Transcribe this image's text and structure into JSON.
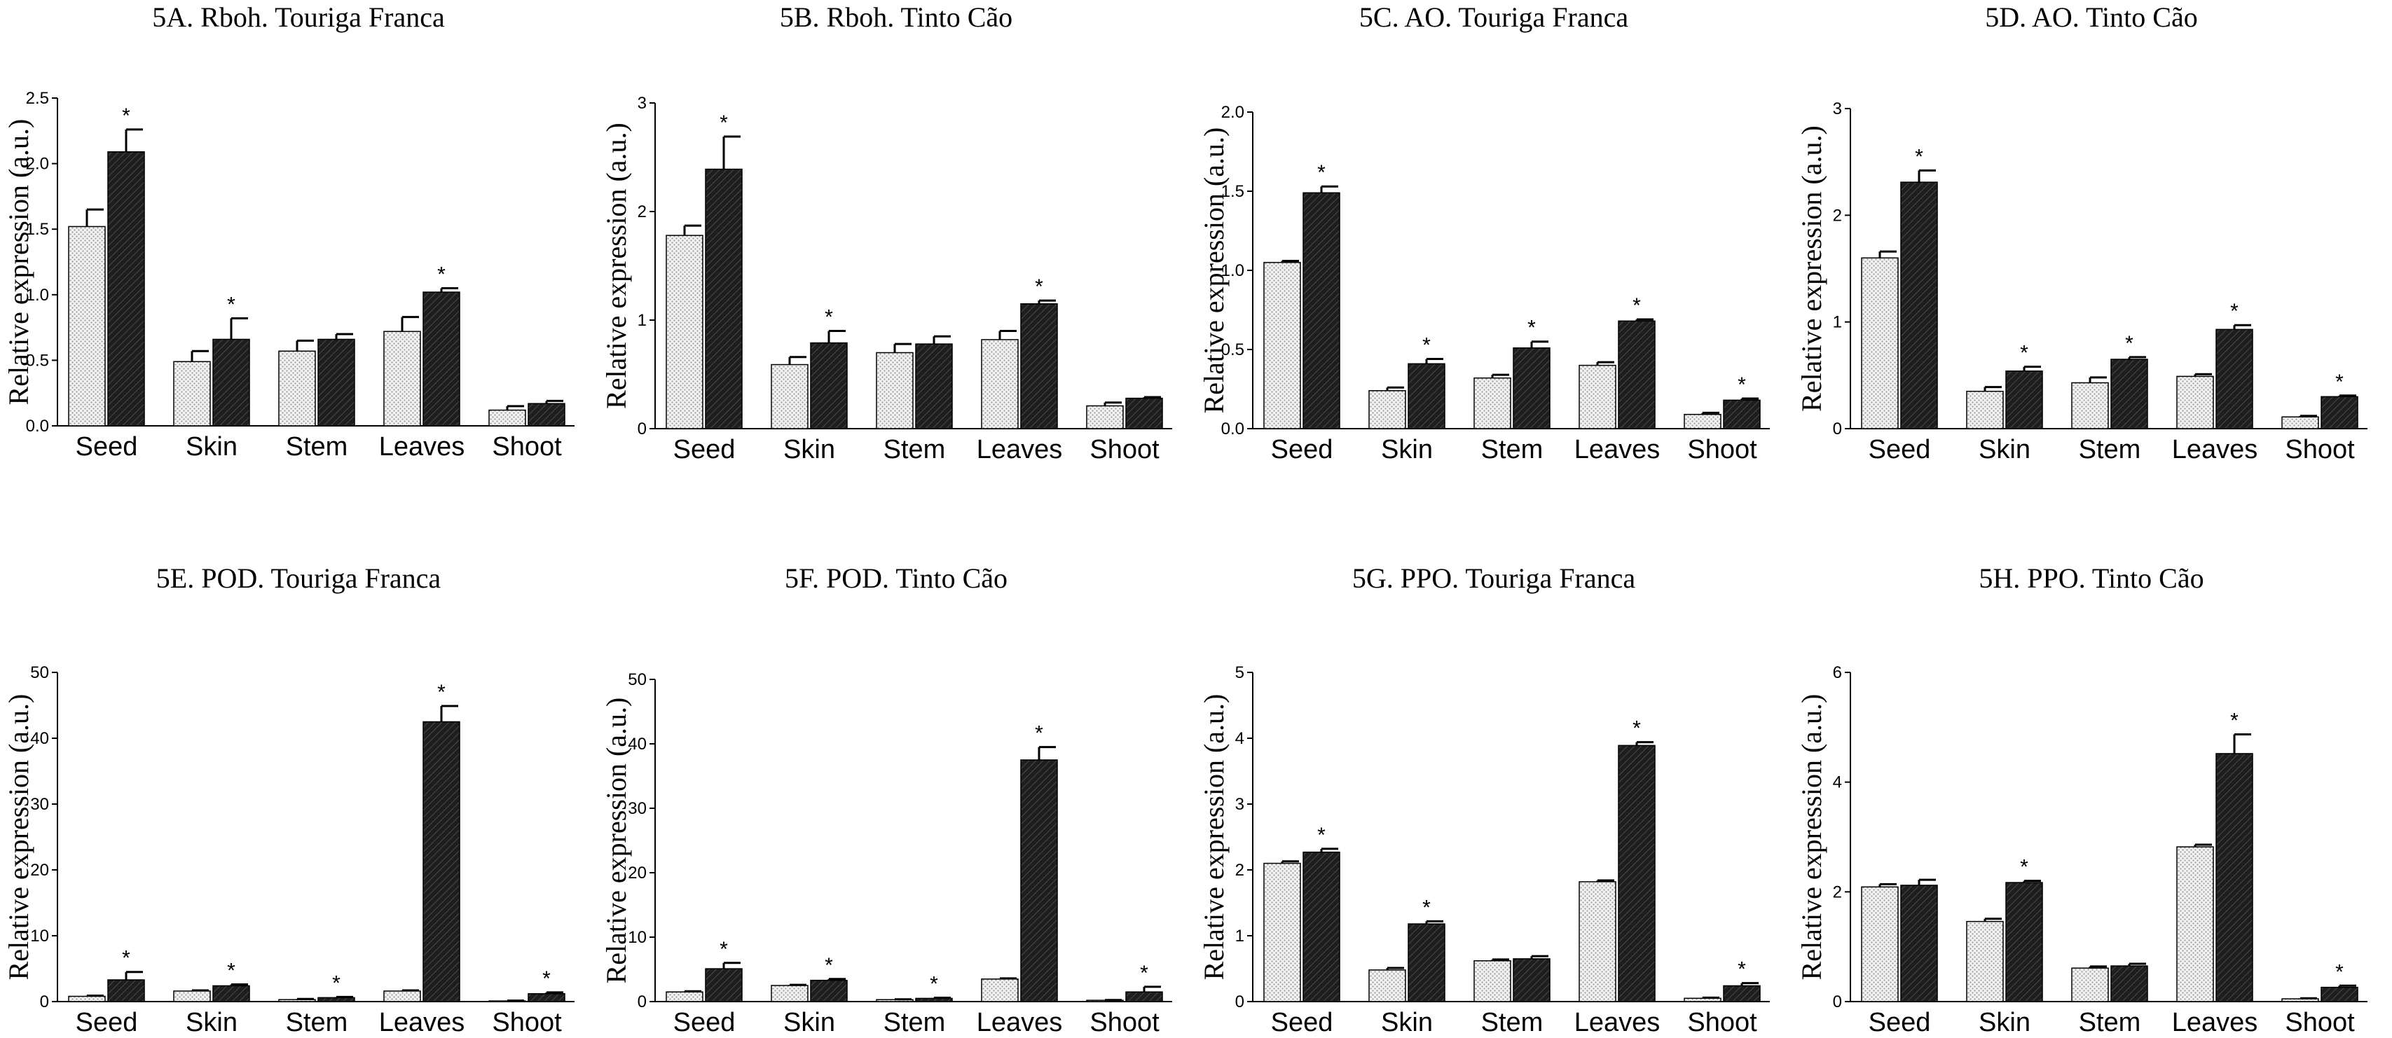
{
  "legend": [
    {
      "name": "",
      "fill": "dotted-light",
      "color": "#e6e6e6"
    },
    {
      "name": "",
      "fill": "hatched-dark",
      "color": "#222222"
    }
  ],
  "chart_data": [
    {
      "type": "bar",
      "title": "5A. Rboh. Touriga Franca",
      "ylabel": "Relative expression (a.u.)",
      "xlabel": "",
      "categories": [
        "Seed",
        "Skin",
        "Stem",
        "Leaves",
        "Shoot"
      ],
      "yticks": [
        "0.0",
        "0.5",
        "1.0",
        "1.5",
        "2.0",
        "2.5"
      ],
      "ylim": [
        0,
        2.5
      ],
      "series": [
        {
          "values": [
            1.52,
            0.49,
            0.57,
            0.72,
            0.12
          ],
          "errors": [
            0.13,
            0.08,
            0.08,
            0.11,
            0.03
          ]
        },
        {
          "values": [
            2.09,
            0.66,
            0.66,
            1.02,
            0.17
          ],
          "errors": [
            0.17,
            0.16,
            0.04,
            0.03,
            0.02
          ]
        }
      ],
      "significance": [
        "*",
        "*",
        "",
        "*",
        ""
      ]
    },
    {
      "type": "bar",
      "title": "5B. Rboh. Tinto Cão",
      "ylabel": "Relative expression (a.u.)",
      "xlabel": "",
      "categories": [
        "Seed",
        "Skin",
        "Stem",
        "Leaves",
        "Shoot"
      ],
      "yticks": [
        "0",
        "1",
        "2",
        "3"
      ],
      "ylim": [
        0,
        3
      ],
      "series": [
        {
          "values": [
            1.78,
            0.59,
            0.7,
            0.82,
            0.21
          ],
          "errors": [
            0.09,
            0.07,
            0.08,
            0.08,
            0.03
          ]
        },
        {
          "values": [
            2.39,
            0.79,
            0.78,
            1.15,
            0.28
          ],
          "errors": [
            0.3,
            0.11,
            0.07,
            0.03,
            0.01
          ]
        }
      ],
      "significance": [
        "*",
        "*",
        "",
        "*",
        ""
      ]
    },
    {
      "type": "bar",
      "title": "5C. AO. Touriga Franca",
      "ylabel": "Relative expression (a.u.)",
      "xlabel": "",
      "categories": [
        "Seed",
        "Skin",
        "Stem",
        "Leaves",
        "Shoot"
      ],
      "yticks": [
        "0.0",
        "0.5",
        "1.0",
        "1.5",
        "2.0"
      ],
      "ylim": [
        0,
        2.0
      ],
      "series": [
        {
          "values": [
            1.05,
            0.24,
            0.32,
            0.4,
            0.09
          ],
          "errors": [
            0.01,
            0.02,
            0.02,
            0.02,
            0.01
          ]
        },
        {
          "values": [
            1.49,
            0.41,
            0.51,
            0.68,
            0.18
          ],
          "errors": [
            0.04,
            0.03,
            0.04,
            0.01,
            0.01
          ]
        }
      ],
      "significance": [
        "*",
        "*",
        "*",
        "*",
        "*"
      ]
    },
    {
      "type": "bar",
      "title": "5D. AO. Tinto Cão",
      "ylabel": "Relative expression (a.u.)",
      "xlabel": "",
      "categories": [
        "Seed",
        "Skin",
        "Stem",
        "Leaves",
        "Shoot"
      ],
      "yticks": [
        "0",
        "1",
        "2",
        "3"
      ],
      "ylim": [
        0,
        3
      ],
      "series": [
        {
          "values": [
            1.6,
            0.35,
            0.43,
            0.49,
            0.11
          ],
          "errors": [
            0.06,
            0.04,
            0.05,
            0.02,
            0.01
          ]
        },
        {
          "values": [
            2.31,
            0.54,
            0.65,
            0.93,
            0.3
          ],
          "errors": [
            0.11,
            0.04,
            0.02,
            0.04,
            0.01
          ]
        }
      ],
      "significance": [
        "*",
        "*",
        "*",
        "*",
        "*"
      ]
    },
    {
      "type": "bar",
      "title": "5E. POD. Touriga Franca",
      "ylabel": "Relative expression (a.u.)",
      "xlabel": "",
      "categories": [
        "Seed",
        "Skin",
        "Stem",
        "Leaves",
        "Shoot"
      ],
      "yticks": [
        "0",
        "10",
        "20",
        "30",
        "40",
        "50"
      ],
      "ylim": [
        0,
        50
      ],
      "series": [
        {
          "values": [
            0.8,
            1.6,
            0.3,
            1.6,
            0.1
          ],
          "errors": [
            0.1,
            0.1,
            0.1,
            0.1,
            0.05
          ]
        },
        {
          "values": [
            3.3,
            2.4,
            0.6,
            42.5,
            1.2
          ],
          "errors": [
            1.2,
            0.2,
            0.1,
            2.4,
            0.2
          ]
        }
      ],
      "significance": [
        "*",
        "*",
        "*",
        "*",
        "*"
      ]
    },
    {
      "type": "bar",
      "title": "5F. POD. Tinto Cão",
      "ylabel": "Relative expression (a.u.)",
      "xlabel": "",
      "categories": [
        "Seed",
        "Skin",
        "Stem",
        "Leaves",
        "Shoot"
      ],
      "yticks": [
        "0",
        "10",
        "20",
        "30",
        "40",
        "50"
      ],
      "ylim": [
        0,
        50
      ],
      "series": [
        {
          "values": [
            1.5,
            2.5,
            0.3,
            3.5,
            0.2
          ],
          "errors": [
            0.1,
            0.1,
            0.05,
            0.1,
            0.05
          ]
        },
        {
          "values": [
            5.1,
            3.3,
            0.5,
            37.5,
            1.5
          ],
          "errors": [
            0.9,
            0.2,
            0.1,
            2.0,
            0.8
          ]
        }
      ],
      "significance": [
        "*",
        "*",
        "*",
        "*",
        "*"
      ]
    },
    {
      "type": "bar",
      "title": "5G. PPO. Touriga Franca",
      "ylabel": "Relative expression (a.u.)",
      "xlabel": "",
      "categories": [
        "Seed",
        "Skin",
        "Stem",
        "Leaves",
        "Shoot"
      ],
      "yticks": [
        "0",
        "1",
        "2",
        "3",
        "4",
        "5"
      ],
      "ylim": [
        0,
        5
      ],
      "series": [
        {
          "values": [
            2.1,
            0.48,
            0.62,
            1.82,
            0.05
          ],
          "errors": [
            0.03,
            0.03,
            0.02,
            0.02,
            0.01
          ]
        },
        {
          "values": [
            2.27,
            1.18,
            0.65,
            3.89,
            0.24
          ],
          "errors": [
            0.05,
            0.04,
            0.04,
            0.05,
            0.04
          ]
        }
      ],
      "significance": [
        "*",
        "*",
        "",
        "*",
        "*"
      ]
    },
    {
      "type": "bar",
      "title": "5H. PPO. Tinto Cão",
      "ylabel": "Relative expression (a.u.)",
      "xlabel": "",
      "categories": [
        "Seed",
        "Skin",
        "Stem",
        "Leaves",
        "Shoot"
      ],
      "yticks": [
        "0",
        "2",
        "4",
        "6"
      ],
      "ylim": [
        0,
        6
      ],
      "series": [
        {
          "values": [
            2.09,
            1.46,
            0.61,
            2.82,
            0.05
          ],
          "errors": [
            0.05,
            0.05,
            0.03,
            0.04,
            0.01
          ]
        },
        {
          "values": [
            2.12,
            2.17,
            0.65,
            4.52,
            0.26
          ],
          "errors": [
            0.1,
            0.03,
            0.04,
            0.35,
            0.03
          ]
        }
      ],
      "significance": [
        "",
        "*",
        "",
        "*",
        "*"
      ]
    }
  ]
}
